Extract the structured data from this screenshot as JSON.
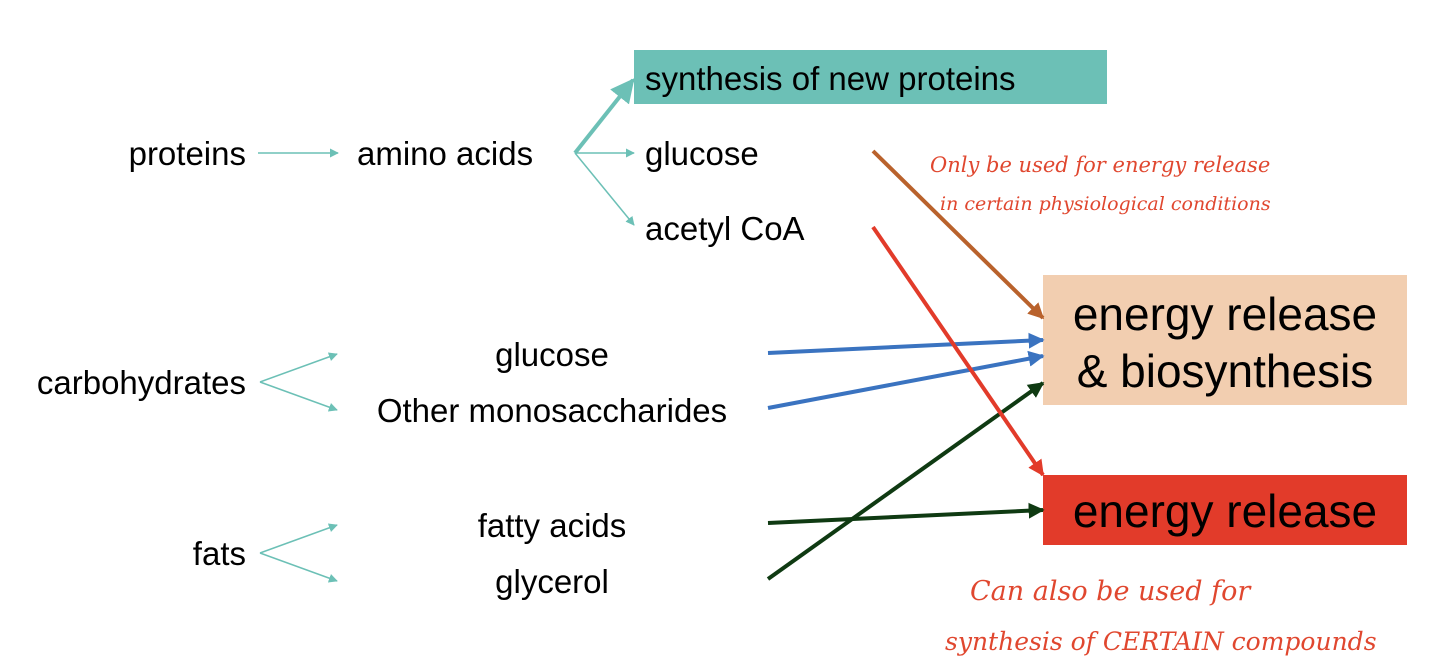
{
  "sources": {
    "proteins": "proteins",
    "carbohydrates": "carbohydrates",
    "fats": "fats"
  },
  "intermediates": {
    "amino_acids": "amino acids",
    "glucose_carb": "glucose",
    "other_monosaccharides": "Other monosaccharides",
    "fatty_acids": "fatty acids",
    "glycerol": "glycerol"
  },
  "amino_acid_fates": {
    "synthesis": "synthesis of new proteins",
    "glucose": "glucose",
    "acetyl_coa": "acetyl CoA"
  },
  "targets": {
    "energy_biosynthesis_line1": "energy release",
    "energy_biosynthesis_line2": "& biosynthesis",
    "energy_release": "energy release"
  },
  "annotations": {
    "note_top_line1": "Only be used for energy release",
    "note_top_line2": "in certain physiological conditions",
    "note_bottom_line1": "Can also be used for",
    "note_bottom_line2": "synthesis of CERTAIN compounds"
  },
  "colors": {
    "teal_box": "#6cc0b6",
    "peach_box": "#f2ceb0",
    "red_box": "#e23b2a",
    "teal_arrow": "#6cc0b6",
    "blue_arrow": "#3a73c0",
    "green_arrow": "#0f3a12",
    "brown_arrow": "#b9622c",
    "red_arrow": "#e23b2a",
    "handwriting": "#e0472f"
  }
}
